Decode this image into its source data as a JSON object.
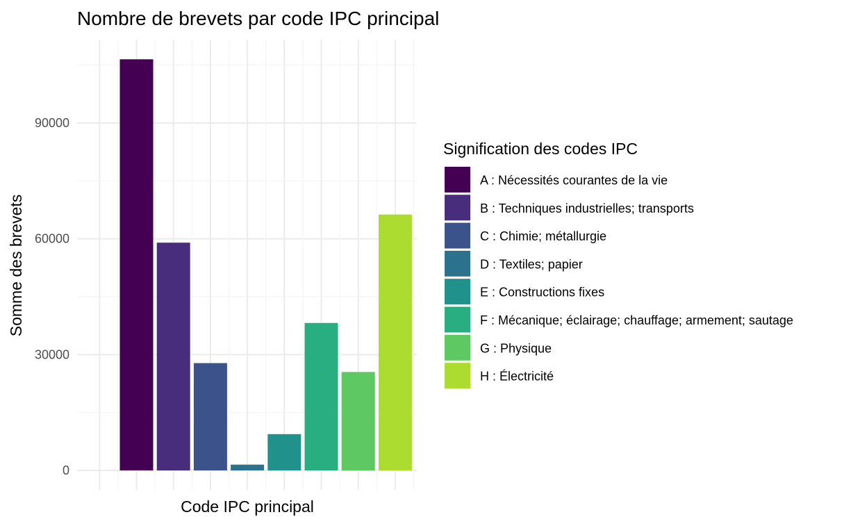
{
  "chart_data": {
    "type": "bar",
    "title": "Nombre de brevets par code IPC principal",
    "xlabel": "Code IPC principal",
    "ylabel": "Somme des brevets",
    "ylim": [
      0,
      110000
    ],
    "yticks": [
      0,
      30000,
      60000,
      90000
    ],
    "y_tick_labels": [
      "0",
      "30000",
      "60000",
      "90000"
    ],
    "grid": true,
    "legend_position": "right",
    "legend_title": "Signification des codes IPC",
    "categories": [
      "A",
      "B",
      "C",
      "D",
      "E",
      "F",
      "G",
      "H"
    ],
    "values": [
      106500,
      59000,
      27800,
      1500,
      9400,
      38200,
      25500,
      66300
    ],
    "colors": [
      "#440154",
      "#472d7b",
      "#3b528b",
      "#2c728e",
      "#21918c",
      "#28ae80",
      "#5ec962",
      "#addc30"
    ],
    "legend": [
      "A : Nécessités courantes de la vie",
      "B : Techniques industrielles; transports",
      "C : Chimie; métallurgie",
      "D : Textiles; papier",
      "E : Constructions fixes",
      "F : Mécanique; éclairage; chauffage; armement; sautage",
      "G : Physique",
      "H : Électricité"
    ]
  }
}
